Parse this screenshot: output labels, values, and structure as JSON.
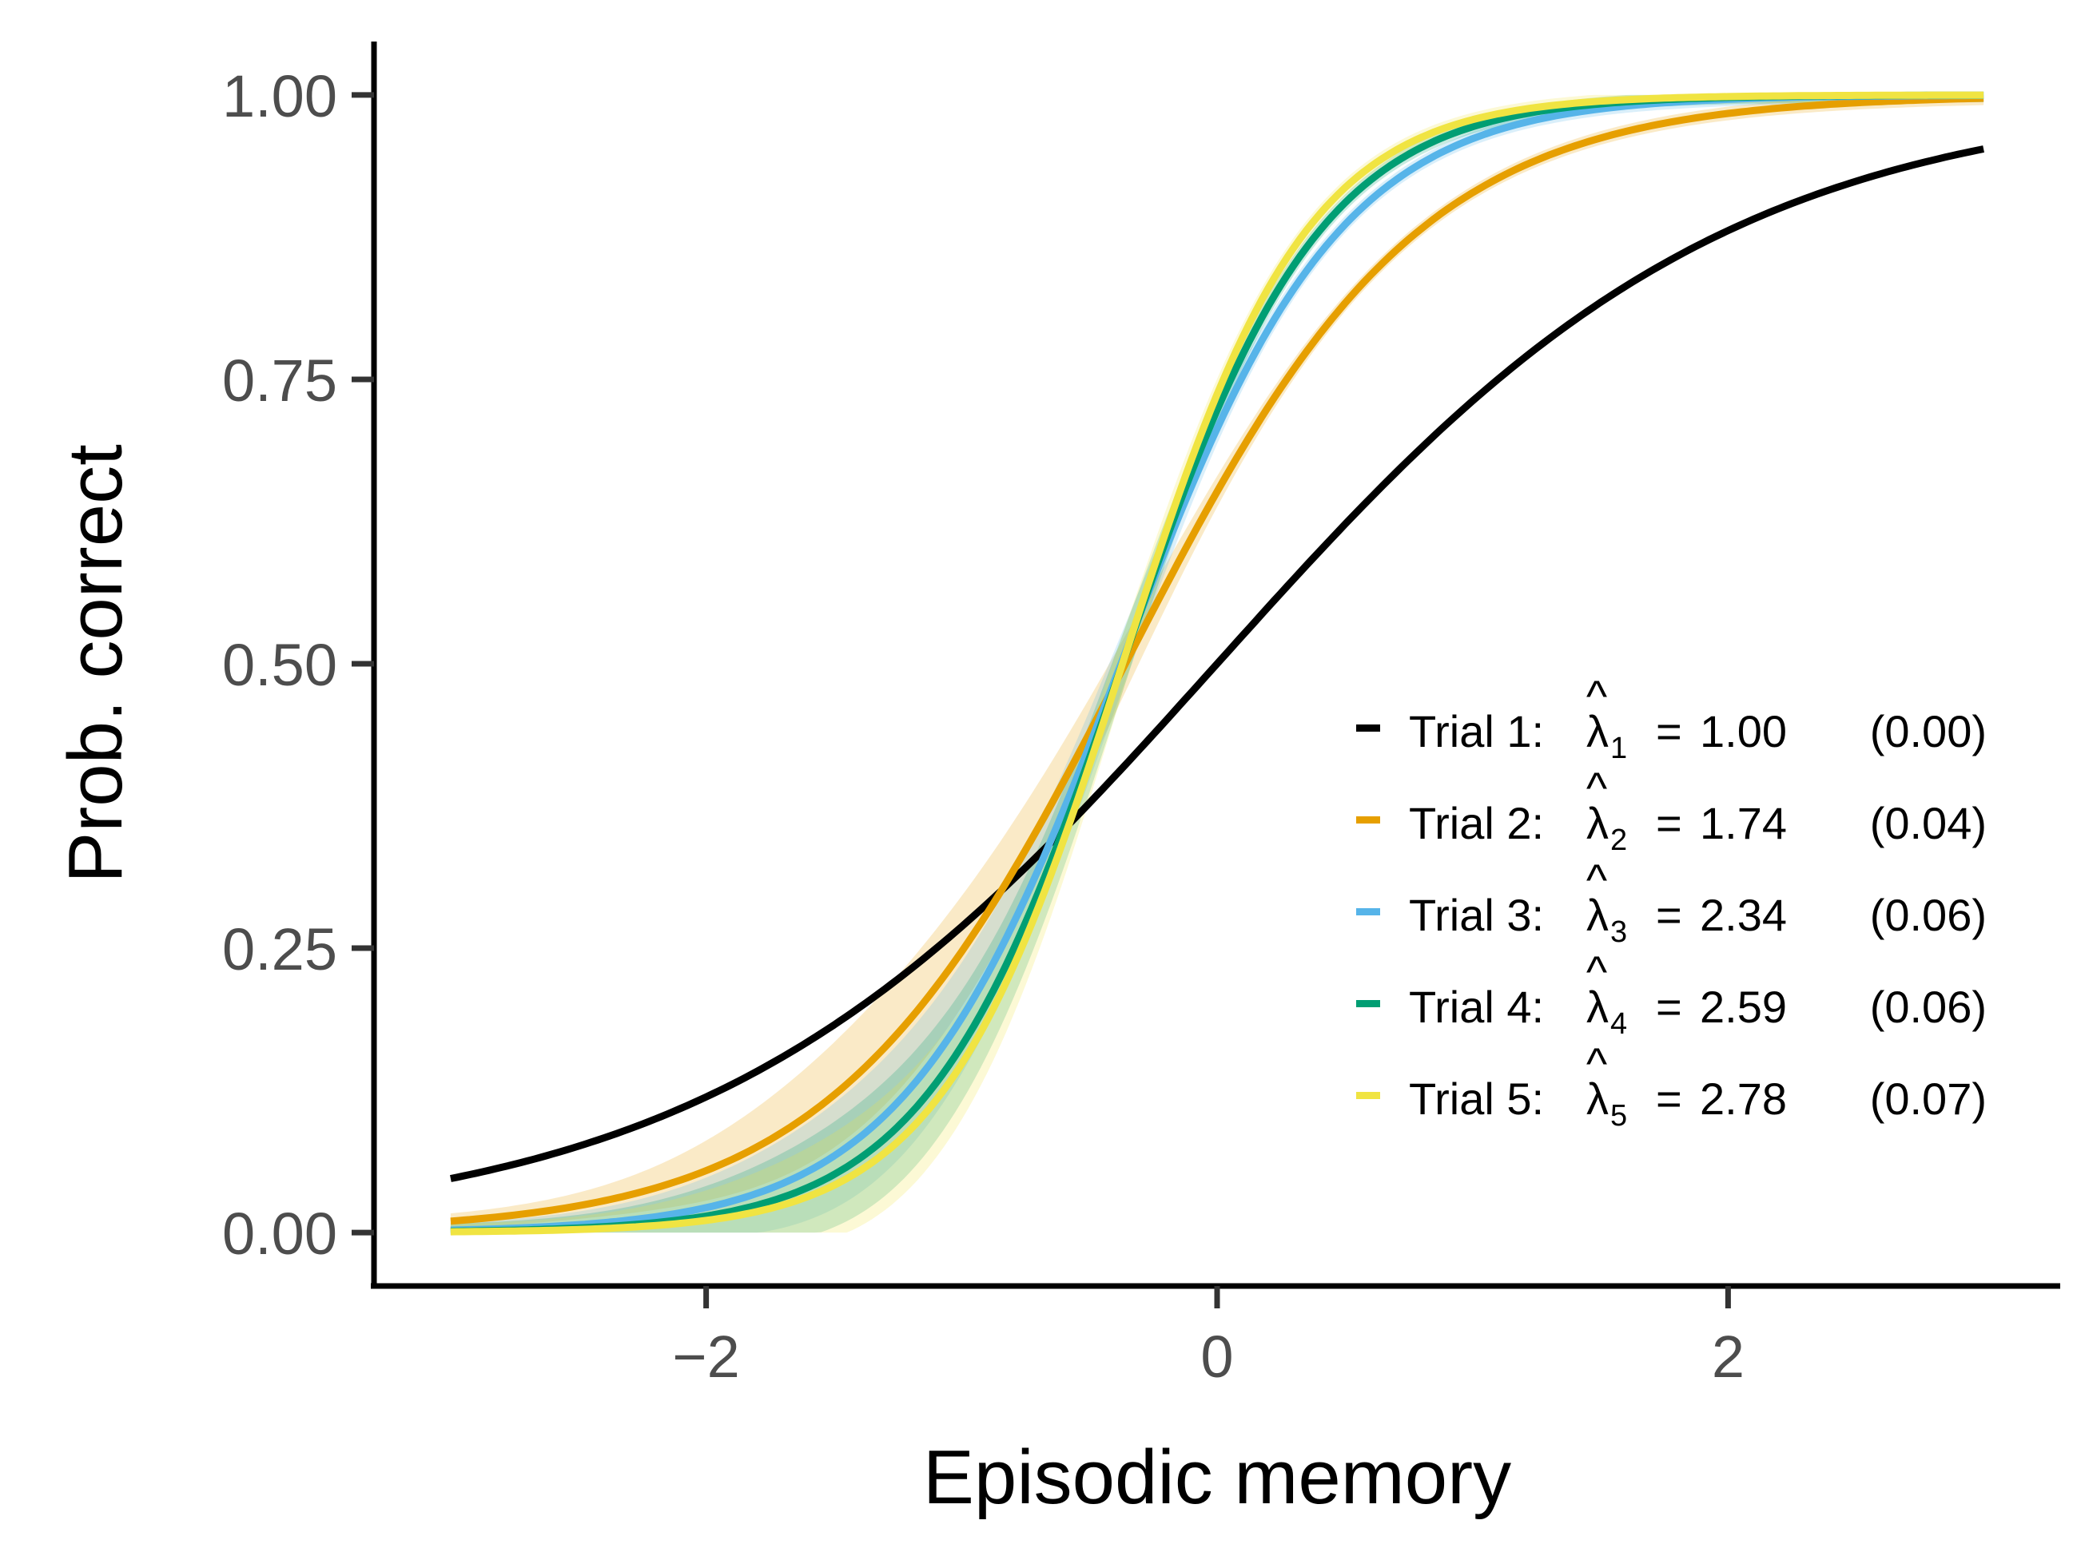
{
  "chart_data": {
    "type": "line",
    "title": "",
    "xlabel": "Episodic memory",
    "ylabel": "Prob. correct",
    "xlim": [
      -3.3,
      3.3
    ],
    "ylim": [
      -0.047,
      1.047
    ],
    "x_ticks": [
      -2,
      0,
      2
    ],
    "x_tick_labels": [
      "−2",
      "0",
      "2"
    ],
    "y_ticks": [
      0,
      0.25,
      0.5,
      0.75,
      1
    ],
    "y_tick_labels": [
      "0.00",
      "0.25",
      "0.50",
      "0.75",
      "1.00"
    ],
    "x_domain": [
      -3,
      3
    ],
    "grid": false,
    "legend_position": "bottom-right",
    "series": [
      {
        "legend_prefix": "Trial 1:",
        "lambda": "1.00",
        "sub": "1",
        "se": "(0.00)",
        "color": "#000000",
        "slope": 1.0,
        "offset": 0.0,
        "band": false
      },
      {
        "legend_prefix": "Trial 2:",
        "lambda": "1.74",
        "sub": "2",
        "se": "(0.04)",
        "color": "#E69F00",
        "slope": 1.74,
        "offset": 0.625,
        "band": true
      },
      {
        "legend_prefix": "Trial 3:",
        "lambda": "2.34",
        "sub": "3",
        "se": "(0.06)",
        "color": "#56B4E9",
        "slope": 2.34,
        "offset": 0.88,
        "band": true
      },
      {
        "legend_prefix": "Trial 4:",
        "lambda": "2.59",
        "sub": "4",
        "se": "(0.06)",
        "color": "#009E73",
        "slope": 2.59,
        "offset": 0.96,
        "band": true
      },
      {
        "legend_prefix": "Trial 5:",
        "lambda": "2.78",
        "sub": "5",
        "se": "(0.07)",
        "color": "#F0E442",
        "slope": 2.78,
        "offset": 1.03,
        "band": true
      }
    ]
  }
}
